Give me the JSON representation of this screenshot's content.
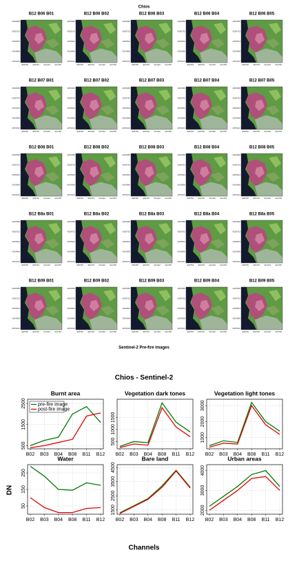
{
  "top": {
    "title": "Chios",
    "caption": "Sentinel-2 Pre-fire images",
    "panel_titles": [
      [
        "B12 B06 B01",
        "B12 B06 B02",
        "B12 B06 B03",
        "B12 B06 B04",
        "B12 B06 B05"
      ],
      [
        "B12 B07 B01",
        "B12 B07 B02",
        "B12 B07 B03",
        "B12 B07 B04",
        "B12 B07 B05"
      ],
      [
        "B12 B08 B01",
        "B12 B08 B02",
        "B12 B08 B03",
        "B12 B08 B04",
        "B12 B08 B05"
      ],
      [
        "B12 B8a B01",
        "B12 B8a B02",
        "B12 B8a B03",
        "B12 B8a B04",
        "B12 B8a B05"
      ],
      [
        "B12 B09 B01",
        "B12 B09 B02",
        "B12 B09 B03",
        "B12 B09 B04",
        "B12 B09 B05"
      ]
    ],
    "image_xticks": [
      "408780",
      "409760",
      "411440",
      "412780"
    ],
    "image_yticks": [
      "4260680",
      "4258752",
      "4256824",
      "4254896",
      "4253012"
    ]
  },
  "figure": {
    "title": "Chios - Sentinel-2",
    "xlabel": "Channels",
    "ylabel": "DN"
  },
  "chart_data": [
    {
      "type": "line",
      "title": "Burnt area",
      "categories": [
        "B02",
        "B03",
        "B04",
        "B08",
        "B11",
        "B12"
      ],
      "ylim": [
        350,
        2700
      ],
      "yticks": [
        500,
        1500,
        2500
      ],
      "grid": true,
      "legend": "top left",
      "series": [
        {
          "name": "pre-fire image",
          "color": "#007a00",
          "values": [
            500,
            750,
            900,
            2000,
            2350,
            1600
          ]
        },
        {
          "name": "post-fire image",
          "color": "#e00000",
          "values": [
            400,
            500,
            650,
            800,
            1900,
            2050
          ]
        }
      ]
    },
    {
      "type": "line",
      "title": "Vegetation dark tones",
      "categories": [
        "B02",
        "B03",
        "B04",
        "B08",
        "B11",
        "B12"
      ],
      "ylim": [
        200,
        2250
      ],
      "yticks": [
        500,
        1000,
        1500
      ],
      "grid": true,
      "series": [
        {
          "color": "#007a00",
          "values": [
            300,
            500,
            450,
            2100,
            1300,
            900
          ]
        },
        {
          "color": "#e00000",
          "values": [
            250,
            400,
            350,
            1900,
            1100,
            700
          ]
        }
      ]
    },
    {
      "type": "line",
      "title": "Vegetation light tones",
      "categories": [
        "B02",
        "B03",
        "B04",
        "B08",
        "B11",
        "B12"
      ],
      "ylim": [
        300,
        3400
      ],
      "yticks": [
        1000,
        2000,
        3000
      ],
      "grid": true,
      "series": [
        {
          "color": "#007a00",
          "values": [
            500,
            800,
            700,
            3200,
            2000,
            1400
          ]
        },
        {
          "color": "#e00000",
          "values": [
            400,
            650,
            600,
            3000,
            1800,
            1200
          ]
        }
      ]
    },
    {
      "type": "line",
      "title": "Water",
      "categories": [
        "B02",
        "B03",
        "B04",
        "B08",
        "B11",
        "B12"
      ],
      "ylim": [
        0,
        300
      ],
      "yticks": [
        50,
        150,
        250
      ],
      "grid": true,
      "series": [
        {
          "color": "#007a00",
          "values": [
            290,
            230,
            150,
            145,
            190,
            175
          ]
        },
        {
          "color": "#e00000",
          "values": [
            100,
            40,
            10,
            10,
            35,
            40
          ]
        }
      ]
    },
    {
      "type": "line",
      "title": "Bare land",
      "categories": [
        "B02",
        "B03",
        "B04",
        "B08",
        "B11",
        "B12"
      ],
      "ylim": [
        1200,
        4700
      ],
      "yticks": [
        1500,
        2500,
        3500,
        4500
      ],
      "grid": true,
      "series": [
        {
          "color": "#007a00",
          "values": [
            1300,
            1800,
            2300,
            3200,
            4300,
            3100
          ]
        },
        {
          "color": "#e00000",
          "values": [
            1250,
            1750,
            2250,
            3100,
            4250,
            3050
          ]
        }
      ]
    },
    {
      "type": "line",
      "title": "Urban areas",
      "categories": [
        "B02",
        "B03",
        "B04",
        "B08",
        "B11",
        "B12"
      ],
      "ylim": [
        1800,
        4300
      ],
      "yticks": [
        2000,
        3000,
        4000
      ],
      "grid": true,
      "series": [
        {
          "color": "#007a00",
          "values": [
            2200,
            2700,
            3200,
            3800,
            4000,
            3200
          ]
        },
        {
          "color": "#e00000",
          "values": [
            2000,
            2500,
            3000,
            3600,
            3700,
            3000
          ]
        }
      ]
    }
  ]
}
